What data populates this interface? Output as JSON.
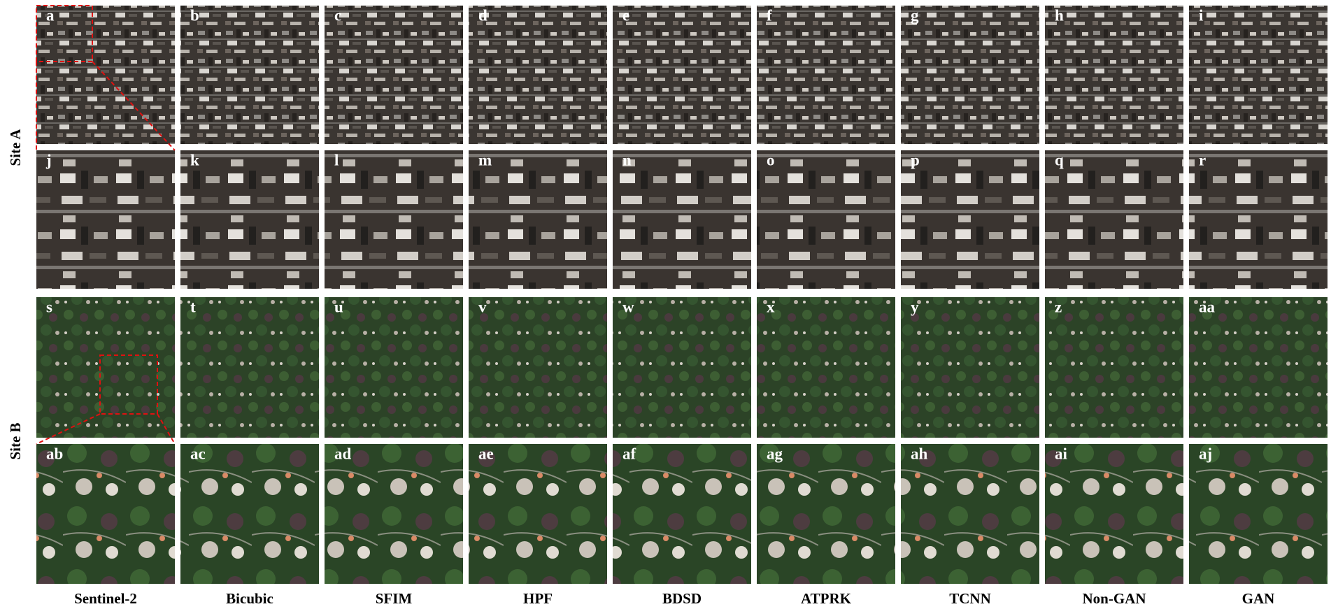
{
  "row_labels": [
    "Site A",
    "Site B"
  ],
  "column_labels": [
    "Sentinel-2",
    "Bicubic",
    "SFIM",
    "HPF",
    "BDSD",
    "ATPRK",
    "TCNN",
    "Non-GAN",
    "GAN"
  ],
  "panels": [
    [
      "a",
      "b",
      "c",
      "d",
      "e",
      "f",
      "g",
      "h",
      "i"
    ],
    [
      "j",
      "k",
      "l",
      "m",
      "n",
      "o",
      "p",
      "q",
      "r"
    ],
    [
      "s",
      "t",
      "u",
      "v",
      "w",
      "x",
      "y",
      "z",
      "aa"
    ],
    [
      "ab",
      "ac",
      "ad",
      "ae",
      "af",
      "ag",
      "ah",
      "ai",
      "aj"
    ]
  ]
}
